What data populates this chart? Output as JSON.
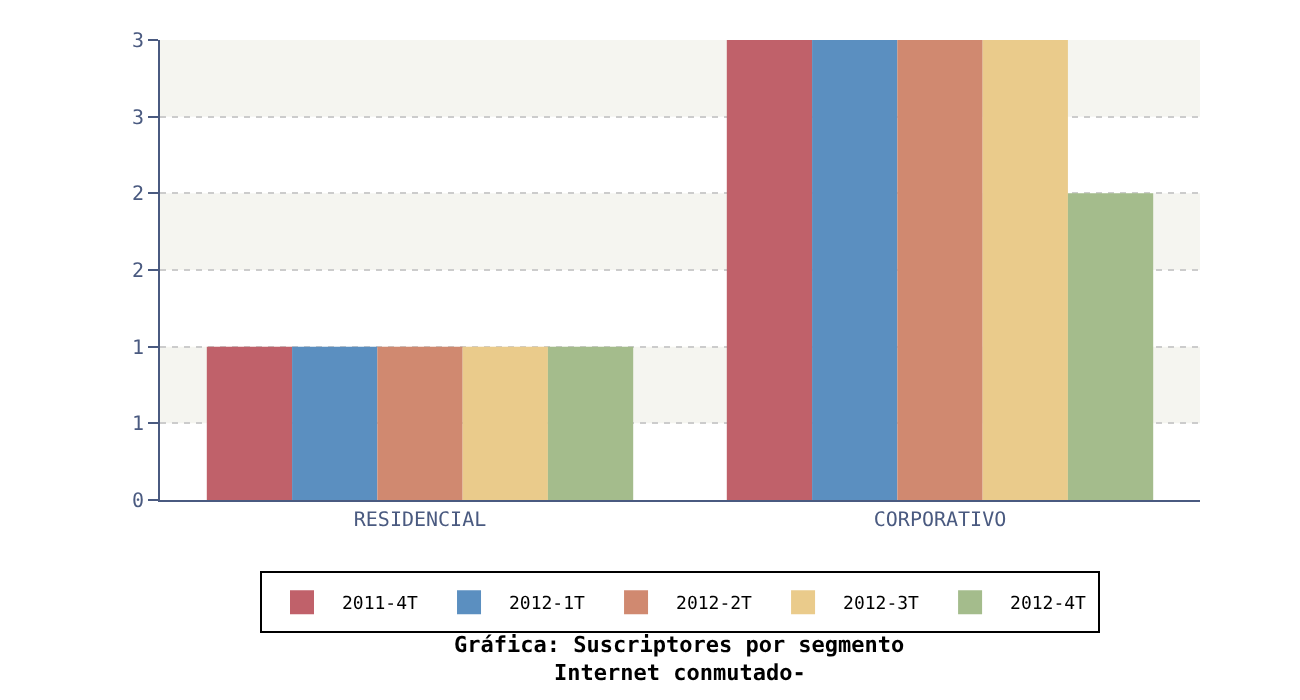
{
  "chart_data": {
    "type": "bar",
    "title": "Gráfica: Suscriptores por segmento",
    "subtitle": "Internet conmutado-",
    "categories": [
      "RESIDENCIAL",
      "CORPORATIVO"
    ],
    "series": [
      {
        "name": "2011-4T",
        "color": "#c0616a",
        "values": [
          1,
          3
        ]
      },
      {
        "name": "2012-1T",
        "color": "#5b8fc0",
        "values": [
          1,
          3
        ]
      },
      {
        "name": "2012-2T",
        "color": "#d08970",
        "values": [
          1,
          3
        ]
      },
      {
        "name": "2012-3T",
        "color": "#eacb8b",
        "values": [
          1,
          3
        ]
      },
      {
        "name": "2012-4T",
        "color": "#a4bc8c",
        "values": [
          1,
          2
        ]
      }
    ],
    "ylim": [
      0,
      3
    ],
    "yticks": [
      0,
      {
        "value": 0.5,
        "label": "1"
      },
      1,
      {
        "value": 1.5,
        "label": "2"
      },
      2,
      {
        "value": 2.5,
        "label": "3"
      },
      3
    ],
    "bands": [
      {
        "axis": "y",
        "from": 0.5,
        "to": 1,
        "color": "#f5f5f0"
      },
      {
        "axis": "y",
        "from": 1.5,
        "to": 2,
        "color": "#f5f5f0"
      },
      {
        "axis": "y",
        "from": 2.5,
        "to": 3,
        "color": "#f5f5f0"
      }
    ],
    "grid": "y",
    "legend": "bottom"
  }
}
